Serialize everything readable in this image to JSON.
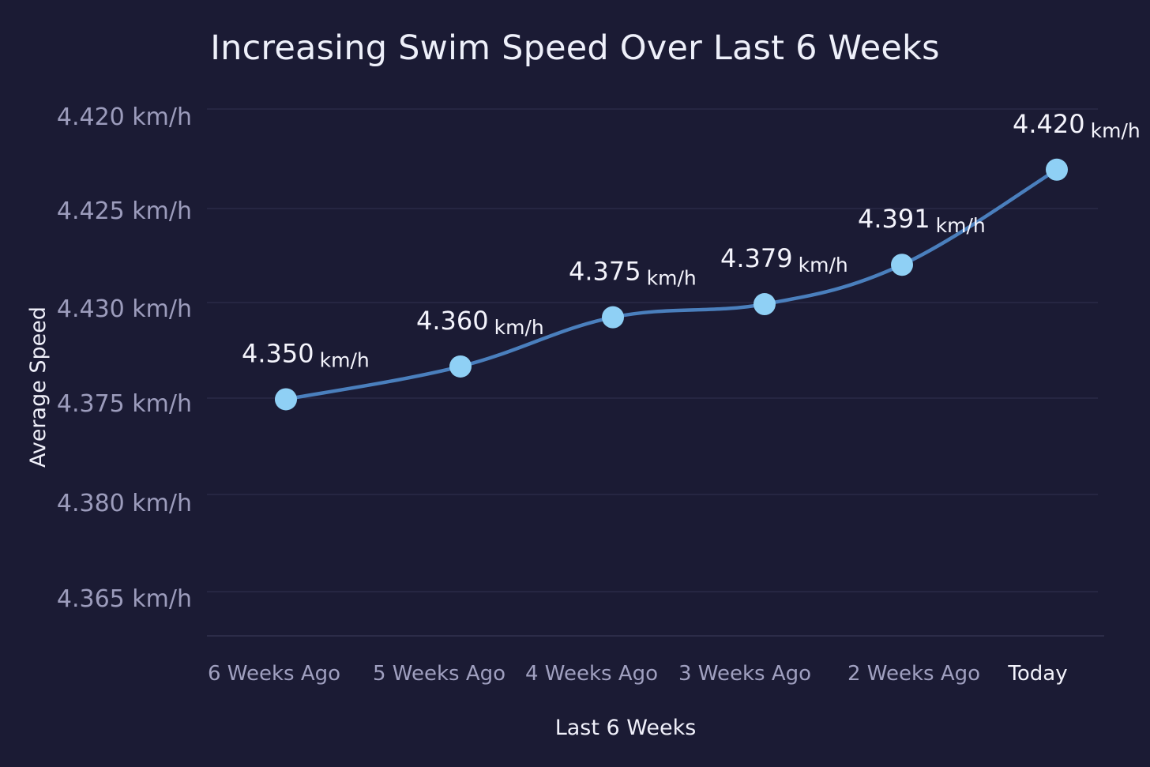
{
  "chart_data": {
    "type": "line",
    "title": "Increasing Swim Speed Over Last 6 Weeks",
    "xlabel": "Last 6 Weeks",
    "ylabel": "Average Speed",
    "categories": [
      "6 Weeks Ago",
      "5 Weeks Ago",
      "4 Weeks Ago",
      "3 Weeks Ago",
      "2 Weeks Ago",
      "Today"
    ],
    "highlight_category": "Today",
    "y_tick_labels": [
      "4.420 km/h",
      "4.425 km/h",
      "4.430 km/h",
      "4.375 km/h",
      "4.380 km/h",
      "4.365 km/h"
    ],
    "series": [
      {
        "values": [
          4.35,
          4.36,
          4.375,
          4.379,
          4.391,
          4.42
        ],
        "value_labels": [
          "4.350",
          "4.360",
          "4.375",
          "4.379",
          "4.391",
          "4.420"
        ],
        "unit": "km/h"
      }
    ],
    "ylim": [
      4.34,
      4.425
    ],
    "grid": true,
    "legend": "none",
    "colors": {
      "background": "#1b1b34",
      "line": "#4a7fbd",
      "marker": "#8fd0f5",
      "grid": "#2e2e4b"
    }
  }
}
